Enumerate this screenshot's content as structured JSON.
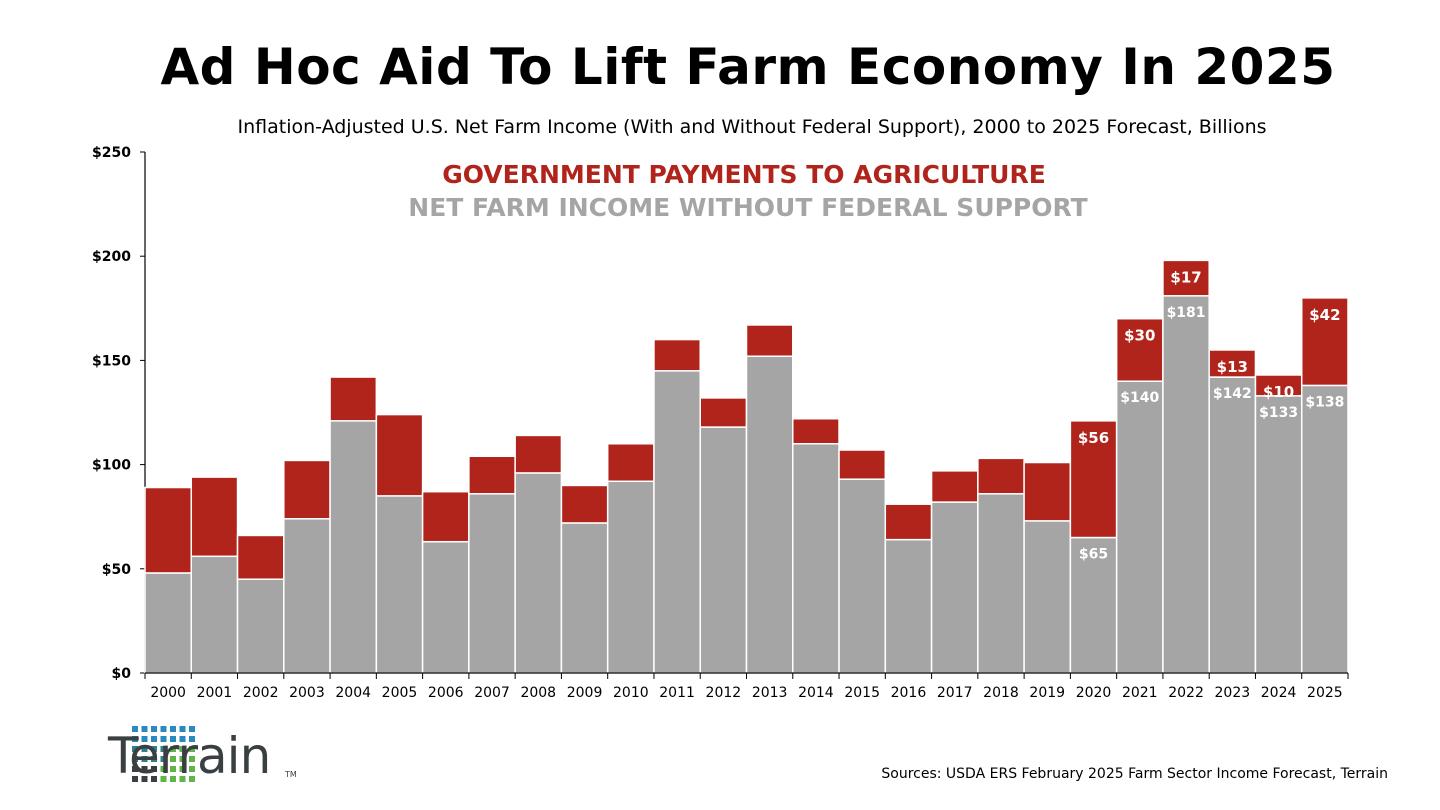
{
  "title": "Ad Hoc Aid To Lift Farm Economy In 2025",
  "subtitle": "Inflation-Adjusted U.S. Net Farm Income (With and Without Federal Support), 2000 to 2025 Forecast, Billions",
  "source": "Sources: USDA ERS February 2025 Farm Sector Income Forecast, Terrain",
  "logo": {
    "name": "Terrain",
    "tm": "TM"
  },
  "colors": {
    "gov": "#b0241b",
    "net": "#a5a5a5"
  },
  "chart_data": {
    "type": "bar",
    "stacked": true,
    "categories": [
      "2000",
      "2001",
      "2002",
      "2003",
      "2004",
      "2005",
      "2006",
      "2007",
      "2008",
      "2009",
      "2010",
      "2011",
      "2012",
      "2013",
      "2014",
      "2015",
      "2016",
      "2017",
      "2018",
      "2019",
      "2020",
      "2021",
      "2022",
      "2023",
      "2024",
      "2025"
    ],
    "series": [
      {
        "name": "NET FARM INCOME WITHOUT FEDERAL SUPPORT",
        "color": "#a5a5a5",
        "values": [
          48,
          56,
          45,
          74,
          121,
          85,
          63,
          86,
          96,
          72,
          92,
          145,
          118,
          152,
          110,
          93,
          64,
          82,
          86,
          73,
          65,
          140,
          181,
          142,
          133,
          138
        ]
      },
      {
        "name": "GOVERNMENT PAYMENTS TO AGRICULTURE",
        "color": "#b0241b",
        "values": [
          41,
          38,
          21,
          28,
          21,
          39,
          24,
          18,
          18,
          18,
          18,
          15,
          14,
          15,
          12,
          14,
          17,
          15,
          17,
          28,
          56,
          30,
          17,
          13,
          10,
          42
        ]
      }
    ],
    "data_labels": {
      "2020": [
        "$65",
        "$56"
      ],
      "2021": [
        "$140",
        "$30"
      ],
      "2022": [
        "$181",
        "$17"
      ],
      "2023": [
        "$142",
        "$13"
      ],
      "2024": [
        "$133",
        "$10"
      ],
      "2025": [
        "$138",
        "$42"
      ]
    },
    "y_ticks": [
      "$0",
      "$50",
      "$100",
      "$150",
      "$200",
      "$250"
    ],
    "ylim": [
      0,
      250
    ],
    "legend_placement": "top-center"
  }
}
